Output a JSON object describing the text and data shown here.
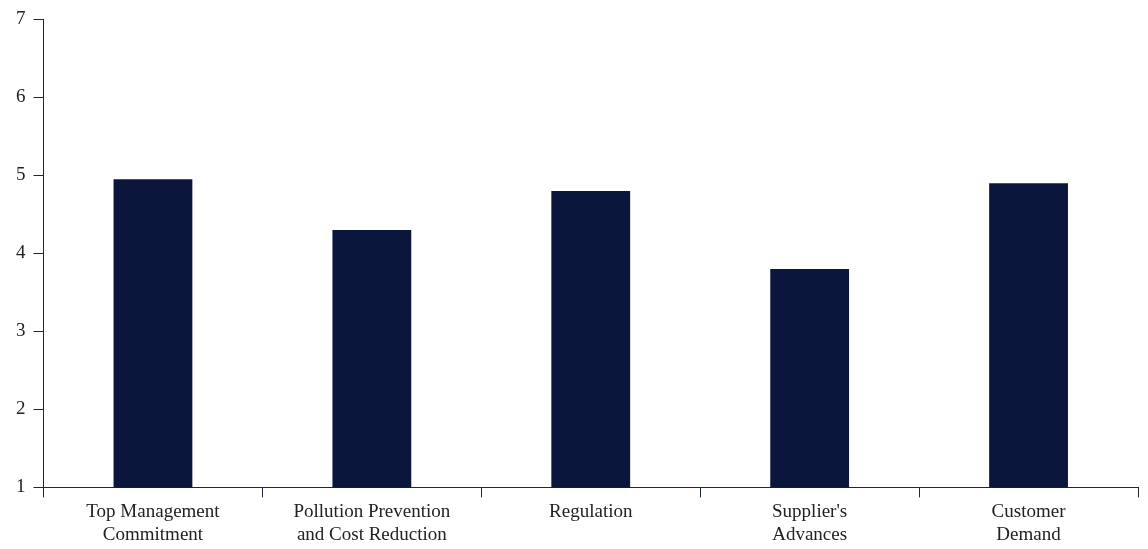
{
  "chart_data": {
    "type": "bar",
    "categories": [
      "Top Management\nCommitment",
      "Pollution Prevention\nand Cost Reduction",
      "Regulation",
      "Supplier's\nAdvances",
      "Customer\nDemand"
    ],
    "values": [
      4.95,
      4.3,
      4.8,
      3.8,
      4.9
    ],
    "color": "#0a163c",
    "ylim": [
      1,
      7
    ],
    "yticks": [
      1,
      2,
      3,
      4,
      5,
      6,
      7
    ],
    "grid": false,
    "legend": false
  }
}
